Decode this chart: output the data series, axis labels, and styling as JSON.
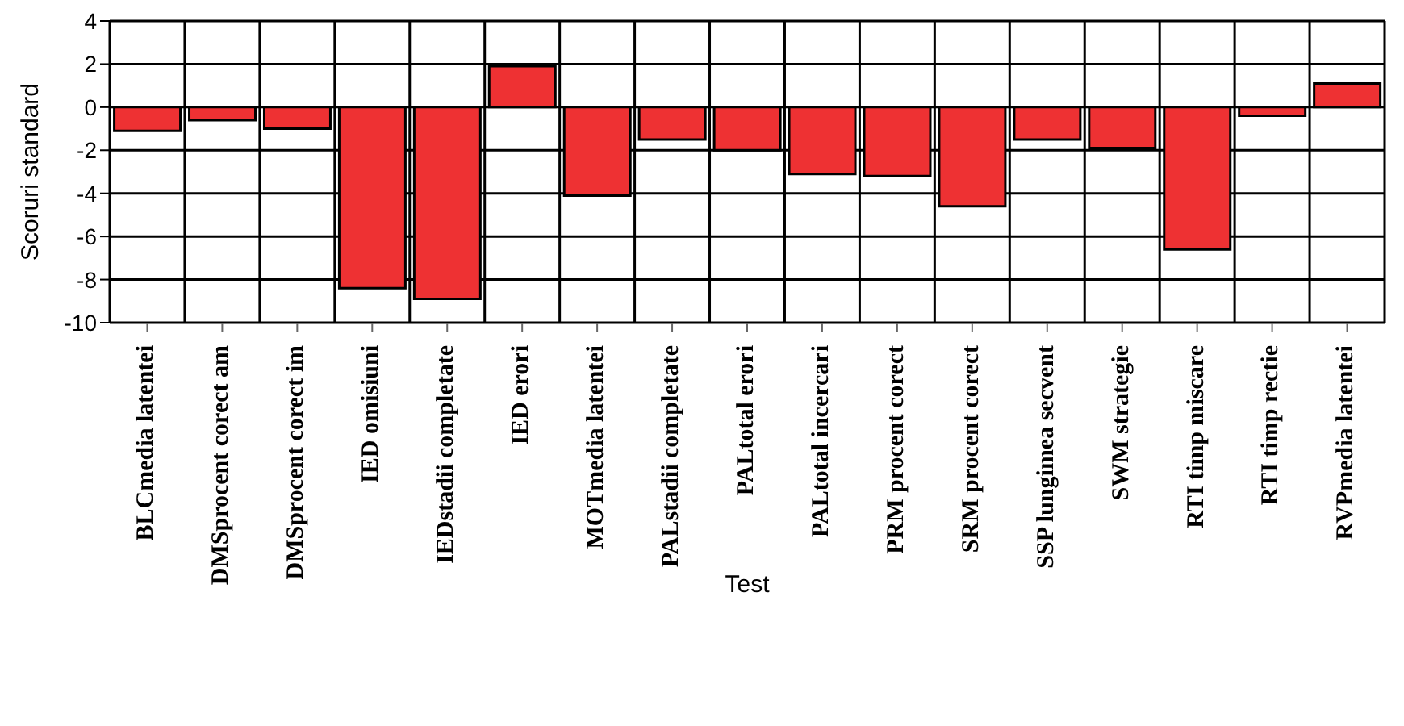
{
  "chart_data": {
    "type": "bar",
    "xlabel": "Test",
    "ylabel": "Scoruri standard",
    "categories": [
      "BLCmedia latentei",
      "DMSprocent corect am",
      "DMSprocent corect im",
      "IED omisiuni",
      "IEDstadii completate",
      "IED erori",
      "MOTmedia latentei",
      "PALstadii completate",
      "PALtotal erori",
      "PALtotal incercari",
      "PRM procent corect",
      "SRM procent corect",
      "SSP lungimea secvent",
      "SWM strategie",
      "RTI timp miscare",
      "RTI timp rectie",
      "RVPmedia latentei"
    ],
    "values": [
      -1.1,
      -0.6,
      -1.0,
      -8.4,
      -8.9,
      1.9,
      -4.1,
      -1.5,
      -2.0,
      -3.1,
      -3.2,
      -4.6,
      -1.5,
      -1.9,
      -6.6,
      -0.4,
      1.1
    ],
    "color": "#ee3133",
    "ylim": [
      -10,
      4
    ],
    "yticks": [
      -10,
      -8,
      -6,
      -4,
      -2,
      0,
      2,
      4
    ],
    "grid": true
  }
}
